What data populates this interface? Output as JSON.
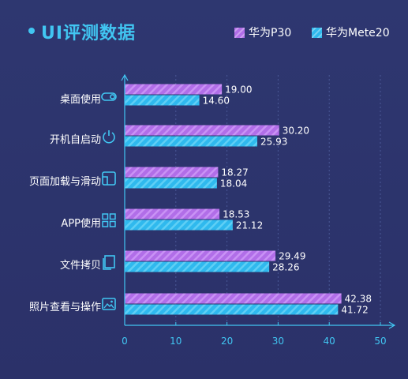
{
  "header": {
    "title": "UI评测数据"
  },
  "legend": [
    {
      "name": "华为P30",
      "color": "#b16ee8"
    },
    {
      "name": "华为Mete20",
      "color": "#2fb9ee"
    }
  ],
  "colors": {
    "accent": "#41c6f2",
    "background": "#2d3570",
    "series_p30": "#b16ee8",
    "series_mate20": "#2fb9ee"
  },
  "categories": [
    {
      "label": "桌面使用",
      "icon": "toggle-icon"
    },
    {
      "label": "开机自启动",
      "icon": "power-icon"
    },
    {
      "label": "页面加载与滑动",
      "icon": "page-icon"
    },
    {
      "label": "APP使用",
      "icon": "app-grid-icon"
    },
    {
      "label": "文件拷贝",
      "icon": "copy-file-icon"
    },
    {
      "label": "照片查看与操作",
      "icon": "photo-icon"
    }
  ],
  "chart_data": {
    "type": "bar",
    "orientation": "horizontal",
    "categories": [
      "桌面使用",
      "开机自启动",
      "页面加载与滑动",
      "APP使用",
      "文件拷贝",
      "照片查看与操作"
    ],
    "series": [
      {
        "name": "华为P30",
        "values": [
          19.0,
          30.2,
          18.27,
          18.53,
          29.49,
          42.38
        ],
        "labels": [
          "19.00",
          "30.20",
          "18.27",
          "18.53",
          "29.49",
          "42.38"
        ]
      },
      {
        "name": "华为Mete20",
        "values": [
          14.6,
          25.93,
          18.04,
          21.12,
          28.26,
          41.72
        ],
        "labels": [
          "14.60",
          "25.93",
          "18.04",
          "21.12",
          "28.26",
          "41.72"
        ]
      }
    ],
    "xlim": [
      0,
      50
    ],
    "xticks": [
      "0",
      "10",
      "20",
      "30",
      "40",
      "50"
    ],
    "grid": true,
    "legend": "top-right"
  }
}
